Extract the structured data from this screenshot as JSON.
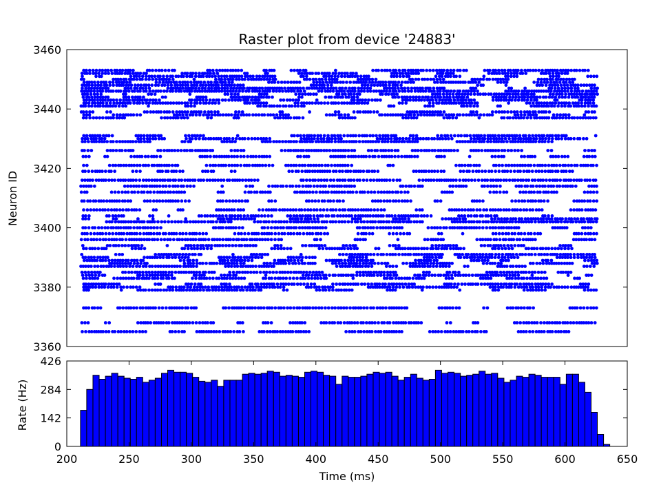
{
  "chart_data": [
    {
      "type": "scatter",
      "title": "Raster plot from device '24883'",
      "ylabel": "Neuron ID",
      "xlim": [
        200,
        650
      ],
      "ylim": [
        3360,
        3460
      ],
      "yticks": [
        3360,
        3380,
        3400,
        3420,
        3440,
        3460
      ],
      "marker_color": "#0000ff",
      "spike_time_range": [
        211,
        626
      ],
      "series": [
        {
          "neuron_ids_with_spikes": [
            3365,
            3368,
            3373,
            3379,
            3380,
            3381,
            3383,
            3384,
            3385,
            3387,
            3388,
            3389,
            3390,
            3391,
            3393,
            3394,
            3396,
            3398,
            3400,
            3402,
            3403,
            3404,
            3406,
            3409,
            3412,
            3414,
            3416,
            3419,
            3421,
            3424,
            3426,
            3429,
            3430,
            3431,
            3437,
            3438,
            3439,
            3441,
            3442,
            3443,
            3444,
            3445,
            3446,
            3447,
            3448,
            3449,
            3450,
            3451,
            3452,
            3453
          ]
        }
      ]
    },
    {
      "type": "bar",
      "ylabel": "Rate (Hz)",
      "xlabel": "Time (ms)",
      "xlim": [
        200,
        650
      ],
      "ylim": [
        0,
        426
      ],
      "yticks": [
        0,
        142,
        284,
        426
      ],
      "xticks": [
        200,
        250,
        300,
        350,
        400,
        450,
        500,
        550,
        600,
        650
      ],
      "bar_color": "#0000ff",
      "bin_width": 5,
      "bin_start": 211,
      "values": [
        180,
        284,
        355,
        335,
        350,
        365,
        350,
        340,
        335,
        345,
        320,
        330,
        340,
        365,
        380,
        370,
        370,
        365,
        345,
        325,
        320,
        330,
        300,
        330,
        330,
        330,
        360,
        365,
        360,
        365,
        375,
        370,
        350,
        355,
        350,
        345,
        370,
        375,
        370,
        355,
        350,
        310,
        350,
        345,
        345,
        350,
        360,
        370,
        365,
        370,
        350,
        330,
        345,
        360,
        340,
        330,
        335,
        380,
        365,
        370,
        365,
        350,
        355,
        360,
        375,
        360,
        365,
        340,
        320,
        330,
        350,
        345,
        360,
        355,
        345,
        345,
        345,
        310,
        360,
        360,
        320,
        270,
        170,
        60,
        10
      ]
    }
  ]
}
